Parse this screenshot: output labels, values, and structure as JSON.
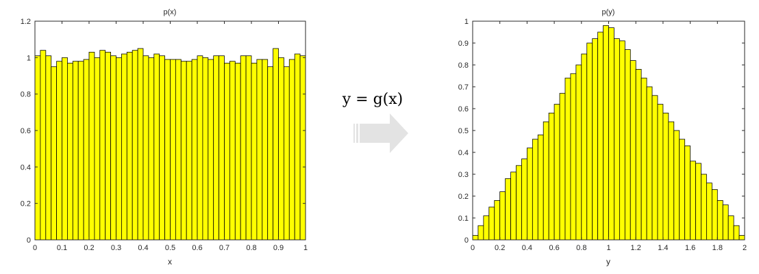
{
  "colors": {
    "bar_fill": "#ffff00",
    "bar_stroke": "#000000",
    "axis": "#262626",
    "arrow": "#e3e3e3"
  },
  "transform": {
    "formula": "y = g(x)",
    "arrow_icon": "right-arrow-icon"
  },
  "chart_data": [
    {
      "type": "bar",
      "title": "p(x)",
      "xlabel": "x",
      "ylabel": "",
      "xlim": [
        0,
        1
      ],
      "ylim": [
        0,
        1.2
      ],
      "grid": false,
      "bin_width": 0.02,
      "xticks": [
        "0",
        "0.1",
        "0.2",
        "0.3",
        "0.4",
        "0.5",
        "0.6",
        "0.7",
        "0.8",
        "0.9",
        "1"
      ],
      "yticks": [
        "0",
        "0.2",
        "0.4",
        "0.6",
        "0.8",
        "1",
        "1.2"
      ],
      "bin_centers": [
        0.01,
        0.03,
        0.05,
        0.07,
        0.09,
        0.11,
        0.13,
        0.15,
        0.17,
        0.19,
        0.21,
        0.23,
        0.25,
        0.27,
        0.29,
        0.31,
        0.33,
        0.35,
        0.37,
        0.39,
        0.41,
        0.43,
        0.45,
        0.47,
        0.49,
        0.51,
        0.53,
        0.55,
        0.57,
        0.59,
        0.61,
        0.63,
        0.65,
        0.67,
        0.69,
        0.71,
        0.73,
        0.75,
        0.77,
        0.79,
        0.81,
        0.83,
        0.85,
        0.87,
        0.89,
        0.91,
        0.93,
        0.95,
        0.97,
        0.99
      ],
      "values": [
        1.01,
        1.04,
        1.01,
        0.95,
        0.98,
        1.0,
        0.97,
        0.98,
        0.98,
        0.99,
        1.03,
        1.0,
        1.04,
        1.03,
        1.01,
        1.0,
        1.02,
        1.03,
        1.04,
        1.05,
        1.01,
        1.0,
        1.02,
        1.01,
        0.99,
        0.99,
        0.99,
        0.98,
        0.98,
        0.99,
        1.01,
        1.0,
        0.99,
        1.01,
        1.01,
        0.97,
        0.98,
        0.97,
        1.01,
        1.01,
        0.97,
        0.99,
        0.99,
        0.95,
        1.05,
        1.0,
        0.95,
        0.99,
        1.02,
        1.01
      ]
    },
    {
      "type": "bar",
      "title": "p(y)",
      "xlabel": "y",
      "ylabel": "",
      "xlim": [
        0,
        2
      ],
      "ylim": [
        0,
        1
      ],
      "grid": false,
      "bin_width": 0.04,
      "xticks": [
        "0",
        "0.2",
        "0.4",
        "0.6",
        "0.8",
        "1",
        "1.2",
        "1.4",
        "1.6",
        "1.8",
        "2"
      ],
      "yticks": [
        "0",
        "0.1",
        "0.2",
        "0.3",
        "0.4",
        "0.5",
        "0.6",
        "0.7",
        "0.8",
        "0.9",
        "1"
      ],
      "bin_centers": [
        0.02,
        0.06,
        0.1,
        0.14,
        0.18,
        0.22,
        0.26,
        0.3,
        0.34,
        0.38,
        0.42,
        0.46,
        0.5,
        0.54,
        0.58,
        0.62,
        0.66,
        0.7,
        0.74,
        0.78,
        0.82,
        0.86,
        0.9,
        0.94,
        0.98,
        1.02,
        1.06,
        1.1,
        1.14,
        1.18,
        1.22,
        1.26,
        1.3,
        1.34,
        1.38,
        1.42,
        1.46,
        1.5,
        1.54,
        1.58,
        1.62,
        1.66,
        1.7,
        1.74,
        1.78,
        1.82,
        1.86,
        1.9,
        1.94,
        1.98
      ],
      "values": [
        0.02,
        0.065,
        0.11,
        0.15,
        0.18,
        0.22,
        0.28,
        0.31,
        0.34,
        0.37,
        0.42,
        0.46,
        0.48,
        0.54,
        0.58,
        0.62,
        0.67,
        0.74,
        0.76,
        0.8,
        0.85,
        0.9,
        0.92,
        0.95,
        0.98,
        0.97,
        0.92,
        0.91,
        0.87,
        0.82,
        0.78,
        0.74,
        0.7,
        0.66,
        0.62,
        0.58,
        0.54,
        0.5,
        0.46,
        0.43,
        0.36,
        0.35,
        0.3,
        0.26,
        0.23,
        0.18,
        0.16,
        0.11,
        0.065,
        0.02
      ]
    }
  ]
}
